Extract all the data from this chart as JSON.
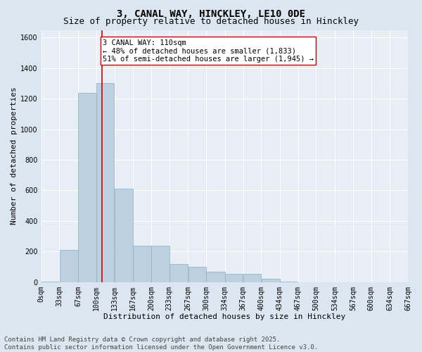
{
  "title1": "3, CANAL WAY, HINCKLEY, LE10 0DE",
  "title2": "Size of property relative to detached houses in Hinckley",
  "xlabel": "Distribution of detached houses by size in Hinckley",
  "ylabel": "Number of detached properties",
  "annotation_title": "3 CANAL WAY: 110sqm",
  "annotation_line1": "← 48% of detached houses are smaller (1,833)",
  "annotation_line2": "51% of semi-detached houses are larger (1,945) →",
  "footer1": "Contains HM Land Registry data © Crown copyright and database right 2025.",
  "footer2": "Contains public sector information licensed under the Open Government Licence v3.0.",
  "property_size": 110,
  "bins": [
    0,
    33,
    67,
    100,
    133,
    167,
    200,
    233,
    267,
    300,
    334,
    367,
    400,
    434,
    467,
    500,
    534,
    567,
    600,
    634,
    667
  ],
  "counts": [
    5,
    210,
    1240,
    1300,
    610,
    240,
    240,
    120,
    100,
    70,
    55,
    55,
    20,
    5,
    0,
    0,
    0,
    0,
    0,
    0
  ],
  "bar_color": "#bdd0e0",
  "bar_edgecolor": "#8aafc8",
  "vline_color": "#cc0000",
  "annotation_box_edgecolor": "#cc0000",
  "bg_color": "#dce6f0",
  "plot_bg_color": "#e8eef5",
  "grid_color": "#ffffff",
  "ylim": [
    0,
    1650
  ],
  "yticks": [
    0,
    200,
    400,
    600,
    800,
    1000,
    1200,
    1400,
    1600
  ],
  "title_fontsize": 10,
  "subtitle_fontsize": 9,
  "axis_label_fontsize": 8,
  "tick_fontsize": 7,
  "annotation_fontsize": 7.5,
  "footer_fontsize": 6.5
}
